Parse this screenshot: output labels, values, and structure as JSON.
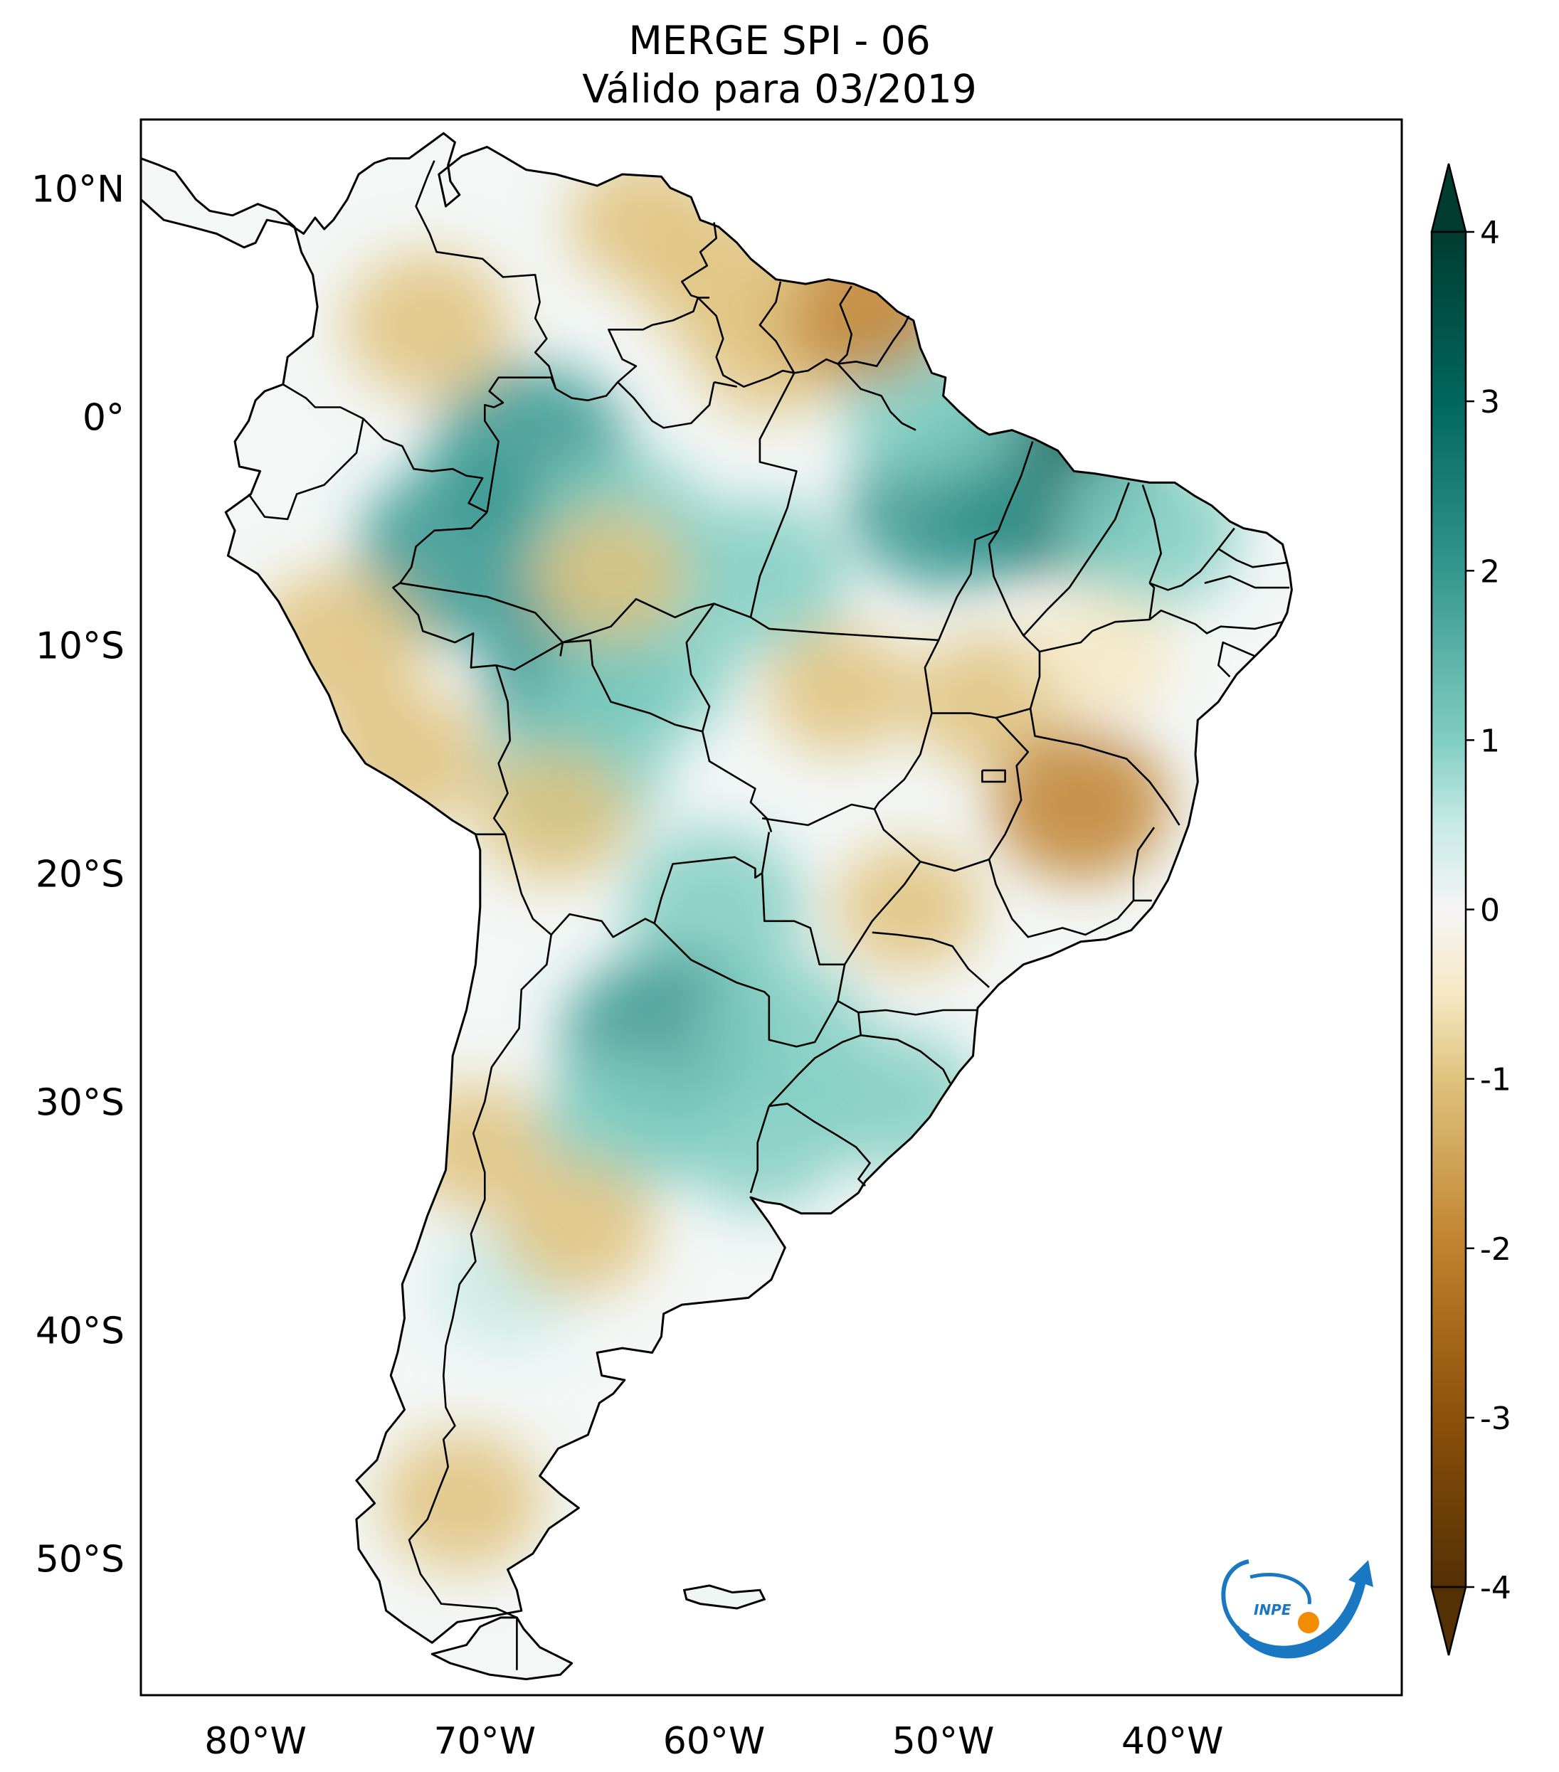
{
  "title": {
    "line1": "MERGE   SPI - 06",
    "line2": "Válido para 03/2019"
  },
  "map": {
    "projection": "PlateCarree",
    "extent_lon": [
      -85,
      -30
    ],
    "extent_lat": [
      -56,
      13
    ],
    "lon_ticks": [
      {
        "value": -80,
        "label": "80°W"
      },
      {
        "value": -70,
        "label": "70°W"
      },
      {
        "value": -60,
        "label": "60°W"
      },
      {
        "value": -50,
        "label": "50°W"
      },
      {
        "value": -40,
        "label": "40°W"
      }
    ],
    "lat_ticks": [
      {
        "value": 10,
        "label": "10°N"
      },
      {
        "value": 0,
        "label": "0°"
      },
      {
        "value": -10,
        "label": "10°S"
      },
      {
        "value": -20,
        "label": "20°S"
      },
      {
        "value": -30,
        "label": "30°S"
      },
      {
        "value": -40,
        "label": "40°S"
      },
      {
        "value": -50,
        "label": "50°S"
      }
    ],
    "anomaly_regions": [
      {
        "kind": "wet",
        "lon": -71.0,
        "lat": -6.0,
        "level": 2.4
      },
      {
        "kind": "wet",
        "lon": -68.0,
        "lat": -1.5,
        "level": 2.2
      },
      {
        "kind": "wet",
        "lon": -64.0,
        "lat": -5.0,
        "level": 1.8
      },
      {
        "kind": "wet",
        "lon": -58.0,
        "lat": -7.0,
        "level": 1.7
      },
      {
        "kind": "wet",
        "lon": -46.0,
        "lat": -2.5,
        "level": 3.0
      },
      {
        "kind": "wet",
        "lon": -50.0,
        "lat": -4.0,
        "level": 2.0
      },
      {
        "kind": "wet",
        "lon": -41.0,
        "lat": -5.0,
        "level": 1.8
      },
      {
        "kind": "wet",
        "lon": -66.0,
        "lat": -11.5,
        "level": 2.0
      },
      {
        "kind": "wet",
        "lon": -63.0,
        "lat": -11.0,
        "level": 1.8
      },
      {
        "kind": "wet",
        "lon": -66.0,
        "lat": -15.5,
        "level": 1.8
      },
      {
        "kind": "wet",
        "lon": -60.0,
        "lat": -21.5,
        "level": 1.8
      },
      {
        "kind": "wet",
        "lon": -62.0,
        "lat": -27.5,
        "level": 2.5
      },
      {
        "kind": "wet",
        "lon": -57.0,
        "lat": -27.0,
        "level": 1.6
      },
      {
        "kind": "wet",
        "lon": -58.0,
        "lat": -31.5,
        "level": 1.6
      },
      {
        "kind": "wet",
        "lon": -64.0,
        "lat": -31.0,
        "level": 1.5
      },
      {
        "kind": "wet",
        "lon": -52.0,
        "lat": -30.0,
        "level": 1.4
      },
      {
        "kind": "wet",
        "lon": -69.0,
        "lat": -38.0,
        "level": 1.0
      },
      {
        "kind": "wet",
        "lon": -50.5,
        "lat": 0.5,
        "level": 1.8
      },
      {
        "kind": "dry",
        "lon": -72.5,
        "lat": 4.0,
        "level": -1.5
      },
      {
        "kind": "dry",
        "lon": -63.0,
        "lat": 8.5,
        "level": -1.2
      },
      {
        "kind": "dry",
        "lon": -57.5,
        "lat": 3.0,
        "level": -1.3
      },
      {
        "kind": "dry",
        "lon": -53.5,
        "lat": 5.0,
        "level": -1.8
      },
      {
        "kind": "dry",
        "lon": -59.5,
        "lat": 6.0,
        "level": -1.5
      },
      {
        "kind": "dry",
        "lon": -76.5,
        "lat": -10.0,
        "level": -1.6
      },
      {
        "kind": "dry",
        "lon": -73.5,
        "lat": -15.0,
        "level": -1.4
      },
      {
        "kind": "dry",
        "lon": -64.5,
        "lat": -7.0,
        "level": -1.2
      },
      {
        "kind": "dry",
        "lon": -54.5,
        "lat": -12.0,
        "level": -1.1
      },
      {
        "kind": "dry",
        "lon": -48.0,
        "lat": -12.5,
        "level": -1.3
      },
      {
        "kind": "dry",
        "lon": -44.0,
        "lat": -17.0,
        "level": -1.7
      },
      {
        "kind": "dry",
        "lon": -51.5,
        "lat": -21.5,
        "level": -1.1
      },
      {
        "kind": "dry",
        "lon": -43.0,
        "lat": -10.5,
        "level": -1.0
      },
      {
        "kind": "dry",
        "lon": -66.0,
        "lat": -35.5,
        "level": -1.3
      },
      {
        "kind": "dry",
        "lon": -70.5,
        "lat": -32.0,
        "level": -1.1
      },
      {
        "kind": "dry",
        "lon": -71.0,
        "lat": -47.5,
        "level": -1.4
      },
      {
        "kind": "dry",
        "lon": -67.0,
        "lat": -17.5,
        "level": -1.2
      }
    ]
  },
  "colorbar": {
    "colormap": "BrBG",
    "min": -4,
    "max": 4,
    "extend": "both",
    "ticks": [
      {
        "value": 4,
        "label": "4"
      },
      {
        "value": 3,
        "label": "3"
      },
      {
        "value": 2,
        "label": "2"
      },
      {
        "value": 1,
        "label": "1"
      },
      {
        "value": 0,
        "label": "0"
      },
      {
        "value": -1,
        "label": "-1"
      },
      {
        "value": -2,
        "label": "-2"
      },
      {
        "value": -3,
        "label": "-3"
      },
      {
        "value": -4,
        "label": "-4"
      }
    ],
    "colors": {
      "c_4": "#003c30",
      "c_3": "#01665e",
      "c_2": "#35978f",
      "c_1": "#80cdc1",
      "c_05": "#c7eae5",
      "c0": "#f5f5f5",
      "cm05": "#f6e8c3",
      "cm1": "#dfc27d",
      "cm2": "#bf812d",
      "cm3": "#8c510a",
      "cm4": "#543005"
    }
  },
  "logo": {
    "text": "INPE",
    "blue": "#1a78c2",
    "orange": "#f28c00"
  }
}
